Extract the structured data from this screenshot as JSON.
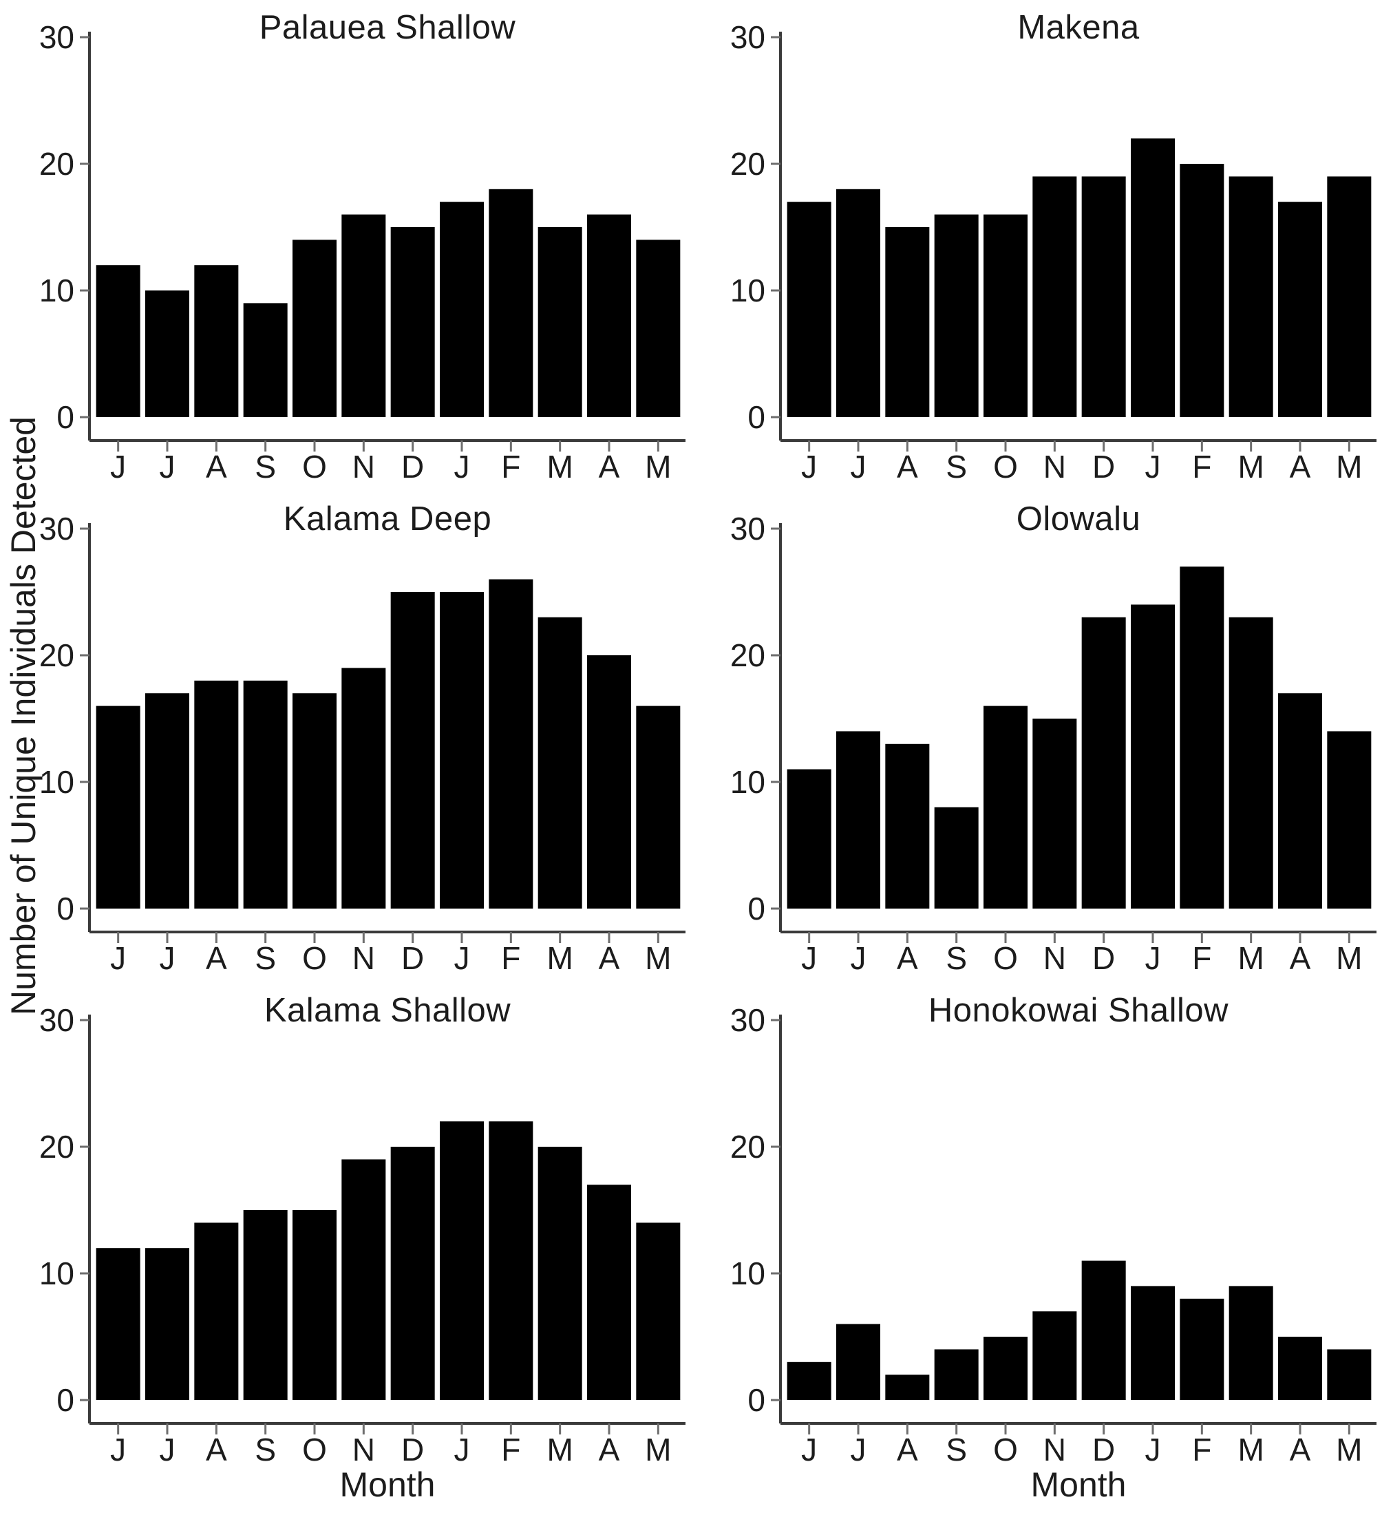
{
  "figure": {
    "ylabel": "Number of Unique Individuals Detected",
    "xlabel": "Month",
    "background": "#ffffff",
    "bar_color": "#000000",
    "axis_color": "#3a3a3a",
    "tick_color": "#6e6e6e",
    "text_color": "#1c1c1c"
  },
  "chart_data": [
    {
      "type": "bar",
      "title": "Palauea Shallow",
      "xlabel": "Month",
      "ylabel": "Number of Unique Individuals Detected",
      "categories": [
        "J",
        "J",
        "A",
        "S",
        "O",
        "N",
        "D",
        "J",
        "F",
        "M",
        "A",
        "M"
      ],
      "values": [
        12,
        10,
        12,
        9,
        14,
        16,
        15,
        17,
        18,
        15,
        16,
        14
      ],
      "ylim": [
        0,
        30
      ],
      "yticks": [
        0,
        10,
        20,
        30
      ],
      "grid": false,
      "show_xlabel": false
    },
    {
      "type": "bar",
      "title": "Makena",
      "xlabel": "Month",
      "ylabel": "Number of Unique Individuals Detected",
      "categories": [
        "J",
        "J",
        "A",
        "S",
        "O",
        "N",
        "D",
        "J",
        "F",
        "M",
        "A",
        "M"
      ],
      "values": [
        17,
        18,
        15,
        16,
        16,
        19,
        19,
        22,
        20,
        19,
        17,
        19
      ],
      "ylim": [
        0,
        30
      ],
      "yticks": [
        0,
        10,
        20,
        30
      ],
      "grid": false,
      "show_xlabel": false
    },
    {
      "type": "bar",
      "title": "Kalama Deep",
      "xlabel": "Month",
      "ylabel": "Number of Unique Individuals Detected",
      "categories": [
        "J",
        "J",
        "A",
        "S",
        "O",
        "N",
        "D",
        "J",
        "F",
        "M",
        "A",
        "M"
      ],
      "values": [
        16,
        17,
        18,
        18,
        17,
        19,
        25,
        25,
        26,
        23,
        20,
        16
      ],
      "ylim": [
        0,
        30
      ],
      "yticks": [
        0,
        10,
        20,
        30
      ],
      "grid": false,
      "show_xlabel": false
    },
    {
      "type": "bar",
      "title": "Olowalu",
      "xlabel": "Month",
      "ylabel": "Number of Unique Individuals Detected",
      "categories": [
        "J",
        "J",
        "A",
        "S",
        "O",
        "N",
        "D",
        "J",
        "F",
        "M",
        "A",
        "M"
      ],
      "values": [
        11,
        14,
        13,
        8,
        16,
        15,
        23,
        24,
        27,
        23,
        17,
        14
      ],
      "ylim": [
        0,
        30
      ],
      "yticks": [
        0,
        10,
        20,
        30
      ],
      "grid": false,
      "show_xlabel": false
    },
    {
      "type": "bar",
      "title": "Kalama Shallow",
      "xlabel": "Month",
      "ylabel": "Number of Unique Individuals Detected",
      "categories": [
        "J",
        "J",
        "A",
        "S",
        "O",
        "N",
        "D",
        "J",
        "F",
        "M",
        "A",
        "M"
      ],
      "values": [
        12,
        12,
        14,
        15,
        15,
        19,
        20,
        22,
        22,
        20,
        17,
        14
      ],
      "ylim": [
        0,
        30
      ],
      "yticks": [
        0,
        10,
        20,
        30
      ],
      "grid": false,
      "show_xlabel": true
    },
    {
      "type": "bar",
      "title": "Honokowai Shallow",
      "xlabel": "Month",
      "ylabel": "Number of Unique Individuals Detected",
      "categories": [
        "J",
        "J",
        "A",
        "S",
        "O",
        "N",
        "D",
        "J",
        "F",
        "M",
        "A",
        "M"
      ],
      "values": [
        3,
        6,
        2,
        4,
        5,
        7,
        11,
        9,
        8,
        9,
        5,
        4
      ],
      "ylim": [
        0,
        30
      ],
      "yticks": [
        0,
        10,
        20,
        30
      ],
      "grid": false,
      "show_xlabel": true
    }
  ]
}
